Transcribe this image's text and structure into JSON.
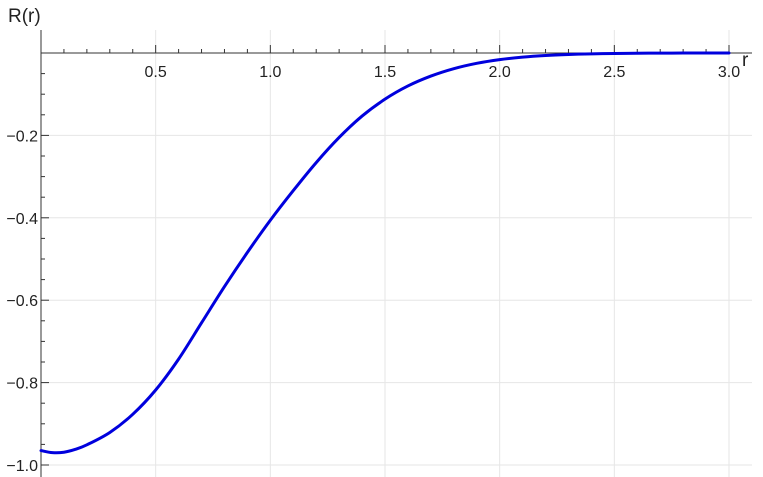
{
  "chart_data": {
    "type": "line",
    "xlabel": "r",
    "ylabel": "R(r)",
    "xlim": [
      0,
      3.0
    ],
    "ylim": [
      -1.0,
      0
    ],
    "grid": true,
    "x_ticks": [
      0.5,
      1.0,
      1.5,
      2.0,
      2.5,
      3.0
    ],
    "x_tick_labels": [
      "0.5",
      "1.0",
      "1.5",
      "2.0",
      "2.5",
      "3.0"
    ],
    "y_ticks": [
      -0.2,
      -0.4,
      -0.6,
      -0.8,
      -1.0
    ],
    "y_tick_labels": [
      "−0.2",
      "−0.4",
      "−0.6",
      "−0.8",
      "−1.0"
    ],
    "series": [
      {
        "color": "#0000dd",
        "x": [
          0,
          0.05,
          0.1,
          0.15,
          0.2,
          0.3,
          0.4,
          0.5,
          0.6,
          0.7,
          0.8,
          0.9,
          1.0,
          1.1,
          1.2,
          1.3,
          1.4,
          1.5,
          1.6,
          1.7,
          1.8,
          1.9,
          2.0,
          2.1,
          2.2,
          2.3,
          2.4,
          2.5,
          2.6,
          2.7,
          2.8,
          2.9,
          3.0
        ],
        "y": [
          -0.965,
          -0.97,
          -0.969,
          -0.962,
          -0.951,
          -0.921,
          -0.877,
          -0.818,
          -0.743,
          -0.655,
          -0.567,
          -0.484,
          -0.406,
          -0.334,
          -0.266,
          -0.205,
          -0.153,
          -0.112,
          -0.08,
          -0.056,
          -0.038,
          -0.025,
          -0.016,
          -0.01,
          -0.006,
          -0.0035,
          -0.002,
          -0.0011,
          -0.0006,
          -0.0003,
          -0.00015,
          -7e-05,
          -3e-05
        ]
      }
    ]
  }
}
